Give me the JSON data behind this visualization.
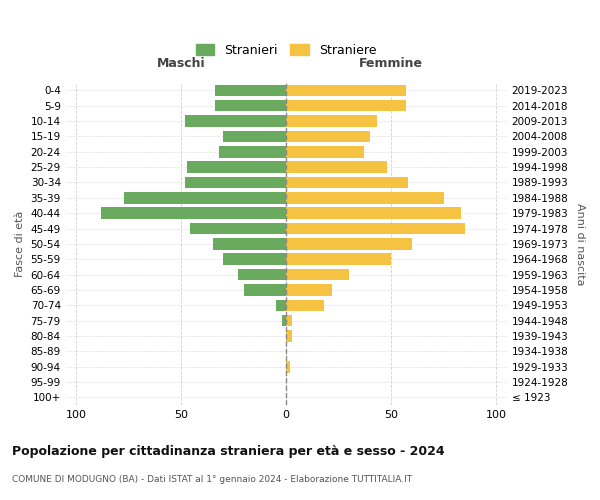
{
  "age_groups": [
    "100+",
    "95-99",
    "90-94",
    "85-89",
    "80-84",
    "75-79",
    "70-74",
    "65-69",
    "60-64",
    "55-59",
    "50-54",
    "45-49",
    "40-44",
    "35-39",
    "30-34",
    "25-29",
    "20-24",
    "15-19",
    "10-14",
    "5-9",
    "0-4"
  ],
  "birth_years": [
    "≤ 1923",
    "1924-1928",
    "1929-1933",
    "1934-1938",
    "1939-1943",
    "1944-1948",
    "1949-1953",
    "1954-1958",
    "1959-1963",
    "1964-1968",
    "1969-1973",
    "1974-1978",
    "1979-1983",
    "1984-1988",
    "1989-1993",
    "1994-1998",
    "1999-2003",
    "2004-2008",
    "2009-2013",
    "2014-2018",
    "2019-2023"
  ],
  "males": [
    0,
    0,
    0,
    0,
    0,
    2,
    5,
    20,
    23,
    30,
    35,
    46,
    88,
    77,
    48,
    47,
    32,
    30,
    48,
    34,
    34
  ],
  "females": [
    0,
    0,
    2,
    0,
    3,
    3,
    18,
    22,
    30,
    50,
    60,
    85,
    83,
    75,
    58,
    48,
    37,
    40,
    43,
    57,
    57
  ],
  "male_color": "#6aaa5e",
  "female_color": "#f5c242",
  "background_color": "#ffffff",
  "grid_color": "#cccccc",
  "title": "Popolazione per cittadinanza straniera per età e sesso - 2024",
  "subtitle": "COMUNE DI MODUGNO (BA) - Dati ISTAT al 1° gennaio 2024 - Elaborazione TUTTITALIA.IT",
  "header_left": "Maschi",
  "header_right": "Femmine",
  "ylabel_left": "Fasce di età",
  "ylabel_right": "Anni di nascita",
  "legend_male": "Stranieri",
  "legend_female": "Straniere",
  "xlim": 105,
  "bar_height": 0.75
}
